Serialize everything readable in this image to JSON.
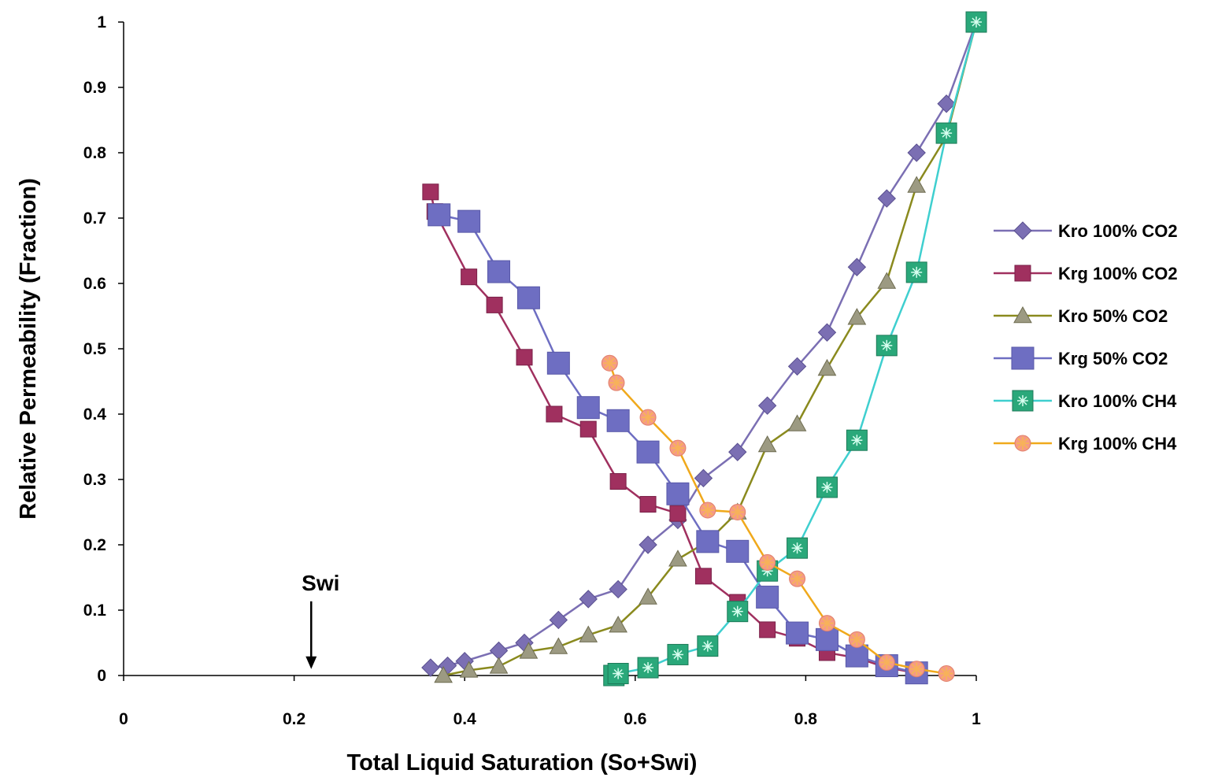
{
  "chart_data": {
    "type": "line",
    "xlabel": "Total Liquid Saturation (So+Swi)",
    "ylabel": "Relative Permeability (Fraction)",
    "xlim": [
      0,
      1
    ],
    "ylim": [
      0,
      1
    ],
    "x_ticks": [
      "0",
      "0.2",
      "0.4",
      "0.6",
      "0.8",
      "1"
    ],
    "y_ticks": [
      "0",
      "0.1",
      "0.2",
      "0.3",
      "0.4",
      "0.5",
      "0.6",
      "0.7",
      "0.8",
      "0.9",
      "1"
    ],
    "grid": false,
    "legend_position": "right",
    "annotation": {
      "text": "Swi",
      "x": 0.22,
      "y_text": 0.14,
      "y_arrow_end": 0.01
    },
    "series": [
      {
        "name": "Kro 100% CO2",
        "color": "#7B6FB3",
        "marker": "diamond",
        "points": [
          [
            0.36,
            0.012
          ],
          [
            0.38,
            0.015
          ],
          [
            0.4,
            0.022
          ],
          [
            0.44,
            0.038
          ],
          [
            0.47,
            0.05
          ],
          [
            0.51,
            0.085
          ],
          [
            0.545,
            0.117
          ],
          [
            0.58,
            0.132
          ],
          [
            0.615,
            0.2
          ],
          [
            0.65,
            0.238
          ],
          [
            0.68,
            0.302
          ],
          [
            0.72,
            0.342
          ],
          [
            0.755,
            0.413
          ],
          [
            0.79,
            0.473
          ],
          [
            0.825,
            0.525
          ],
          [
            0.86,
            0.625
          ],
          [
            0.895,
            0.73
          ],
          [
            0.93,
            0.8
          ],
          [
            0.965,
            0.875
          ],
          [
            1.0,
            1.0
          ]
        ]
      },
      {
        "name": "Krg 100% CO2",
        "color": "#A0305F",
        "marker": "square",
        "points": [
          [
            0.36,
            0.74
          ],
          [
            0.365,
            0.71
          ],
          [
            0.405,
            0.61
          ],
          [
            0.435,
            0.567
          ],
          [
            0.47,
            0.487
          ],
          [
            0.505,
            0.4
          ],
          [
            0.545,
            0.377
          ],
          [
            0.58,
            0.297
          ],
          [
            0.615,
            0.262
          ],
          [
            0.65,
            0.248
          ],
          [
            0.68,
            0.152
          ],
          [
            0.72,
            0.112
          ],
          [
            0.755,
            0.07
          ],
          [
            0.79,
            0.057
          ],
          [
            0.825,
            0.035
          ],
          [
            0.86,
            0.027
          ],
          [
            0.895,
            0.012
          ],
          [
            0.93,
            0.004
          ]
        ]
      },
      {
        "name": "Kro 50% CO2",
        "color": "#8A8A1E",
        "marker": "triangle",
        "points": [
          [
            0.375,
            0.0
          ],
          [
            0.405,
            0.008
          ],
          [
            0.44,
            0.014
          ],
          [
            0.475,
            0.037
          ],
          [
            0.51,
            0.044
          ],
          [
            0.545,
            0.062
          ],
          [
            0.58,
            0.077
          ],
          [
            0.615,
            0.12
          ],
          [
            0.65,
            0.178
          ],
          [
            0.685,
            0.205
          ],
          [
            0.72,
            0.25
          ],
          [
            0.755,
            0.353
          ],
          [
            0.79,
            0.385
          ],
          [
            0.825,
            0.47
          ],
          [
            0.86,
            0.548
          ],
          [
            0.895,
            0.603
          ],
          [
            0.93,
            0.75
          ],
          [
            0.965,
            0.825
          ],
          [
            1.0,
            1.0
          ]
        ]
      },
      {
        "name": "Krg 50% CO2",
        "color": "#6E6EC2",
        "marker": "square",
        "points": [
          [
            0.37,
            0.705
          ],
          [
            0.405,
            0.695
          ],
          [
            0.44,
            0.618
          ],
          [
            0.475,
            0.578
          ],
          [
            0.51,
            0.478
          ],
          [
            0.545,
            0.41
          ],
          [
            0.58,
            0.39
          ],
          [
            0.615,
            0.342
          ],
          [
            0.65,
            0.278
          ],
          [
            0.685,
            0.205
          ],
          [
            0.72,
            0.19
          ],
          [
            0.755,
            0.12
          ],
          [
            0.79,
            0.065
          ],
          [
            0.825,
            0.055
          ],
          [
            0.86,
            0.03
          ],
          [
            0.895,
            0.015
          ],
          [
            0.93,
            0.004
          ]
        ]
      },
      {
        "name": "Kro 100% CH4",
        "color": "#3FCFCF",
        "marker": "square-asterisk",
        "points": [
          [
            0.575,
            0.0
          ],
          [
            0.58,
            0.003
          ],
          [
            0.615,
            0.012
          ],
          [
            0.65,
            0.032
          ],
          [
            0.685,
            0.045
          ],
          [
            0.72,
            0.098
          ],
          [
            0.755,
            0.16
          ],
          [
            0.79,
            0.195
          ],
          [
            0.825,
            0.288
          ],
          [
            0.86,
            0.36
          ],
          [
            0.895,
            0.505
          ],
          [
            0.93,
            0.617
          ],
          [
            0.965,
            0.83
          ],
          [
            1.0,
            1.0
          ]
        ]
      },
      {
        "name": "Krg 100% CH4",
        "color": "#F0A91C",
        "marker": "circle-asterisk",
        "points": [
          [
            0.57,
            0.478
          ],
          [
            0.578,
            0.448
          ],
          [
            0.615,
            0.395
          ],
          [
            0.65,
            0.348
          ],
          [
            0.685,
            0.253
          ],
          [
            0.72,
            0.25
          ],
          [
            0.755,
            0.173
          ],
          [
            0.79,
            0.148
          ],
          [
            0.825,
            0.08
          ],
          [
            0.86,
            0.055
          ],
          [
            0.895,
            0.02
          ],
          [
            0.93,
            0.01
          ],
          [
            0.965,
            0.003
          ]
        ]
      }
    ]
  }
}
